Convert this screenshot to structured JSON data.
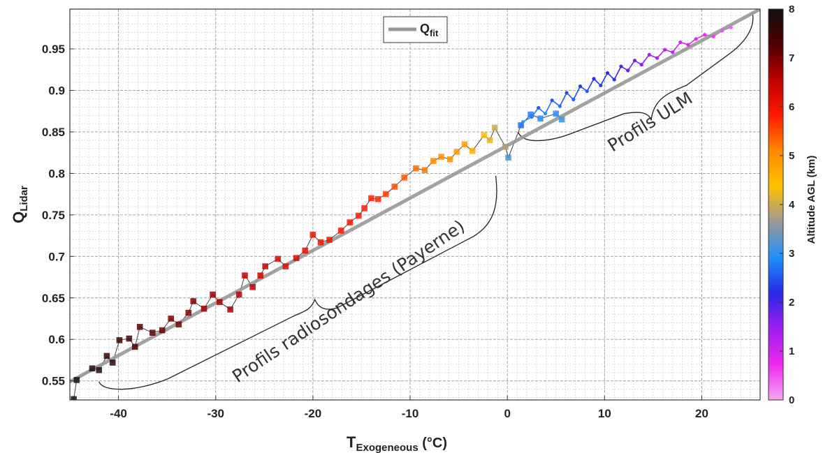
{
  "chart_data": {
    "type": "scatter",
    "xlabel": "T",
    "xlabel_sub": "Exogeneous",
    "xlabel_unit": " (°C)",
    "ylabel": "Q",
    "ylabel_sub": "Lidar",
    "xlim": [
      -45,
      26
    ],
    "ylim": [
      0.527,
      0.998
    ],
    "x_ticks": [
      -40,
      -30,
      -20,
      -10,
      0,
      10,
      20
    ],
    "y_ticks": [
      0.55,
      0.6,
      0.65,
      0.7,
      0.75,
      0.8,
      0.85,
      0.9,
      0.95
    ],
    "grid": true,
    "minor_grid": true,
    "legend": {
      "position": "top-left",
      "label": "Q",
      "label_sub": "fit",
      "color": "#999999"
    },
    "colorbar": {
      "label": "Altitude AGL (km)",
      "range": [
        0,
        8
      ],
      "ticks": [
        0,
        1,
        2,
        3,
        4,
        5,
        6,
        7,
        8
      ],
      "colors": [
        "#f2a7f2",
        "#f028f0",
        "#a01ef0",
        "#2828e6",
        "#1e90ff",
        "#999999",
        "#ffc000",
        "#ff8a00",
        "#ff1a00",
        "#c00000",
        "#500000",
        "#111111"
      ]
    },
    "fit_line": {
      "name": "Q",
      "points": [
        [
          -45,
          0.549
        ],
        [
          26,
          0.998
        ]
      ]
    },
    "series": [
      {
        "kind": "radiosonde",
        "points": [
          [
            -44.6,
            0.528,
            7.9
          ],
          [
            -44.3,
            0.551,
            7.9
          ],
          [
            -42.7,
            0.565,
            7.8
          ],
          [
            -42.0,
            0.563,
            7.7
          ],
          [
            -41.2,
            0.58,
            7.6
          ],
          [
            -40.6,
            0.572,
            7.6
          ],
          [
            -39.9,
            0.599,
            7.5
          ],
          [
            -38.9,
            0.601,
            7.4
          ],
          [
            -38.3,
            0.591,
            7.3
          ],
          [
            -37.8,
            0.615,
            7.3
          ],
          [
            -36.5,
            0.608,
            7.2
          ],
          [
            -35.5,
            0.611,
            7.1
          ],
          [
            -34.6,
            0.625,
            7.0
          ],
          [
            -33.8,
            0.618,
            7.0
          ],
          [
            -32.8,
            0.632,
            6.9
          ],
          [
            -32.3,
            0.646,
            6.9
          ],
          [
            -31.2,
            0.637,
            6.8
          ],
          [
            -30.3,
            0.654,
            6.8
          ],
          [
            -29.6,
            0.645,
            6.7
          ],
          [
            -28.5,
            0.636,
            6.7
          ],
          [
            -27.6,
            0.654,
            6.6
          ],
          [
            -27.0,
            0.677,
            6.5
          ],
          [
            -26.2,
            0.663,
            6.5
          ],
          [
            -25.4,
            0.677,
            6.4
          ],
          [
            -24.9,
            0.688,
            6.4
          ],
          [
            -23.6,
            0.697,
            6.3
          ],
          [
            -22.8,
            0.688,
            6.2
          ],
          [
            -21.7,
            0.698,
            6.2
          ],
          [
            -20.8,
            0.707,
            6.1
          ],
          [
            -20.0,
            0.726,
            6.0
          ],
          [
            -19.2,
            0.717,
            6.0
          ],
          [
            -18.3,
            0.72,
            6.0
          ],
          [
            -17.1,
            0.731,
            5.9
          ],
          [
            -16.2,
            0.741,
            5.9
          ],
          [
            -15.3,
            0.749,
            5.8
          ],
          [
            -14.7,
            0.758,
            5.8
          ],
          [
            -14.0,
            0.77,
            5.8
          ],
          [
            -13.3,
            0.769,
            5.7
          ],
          [
            -12.5,
            0.775,
            5.6
          ],
          [
            -11.6,
            0.784,
            5.5
          ],
          [
            -10.6,
            0.795,
            5.4
          ],
          [
            -9.4,
            0.806,
            5.3
          ],
          [
            -8.5,
            0.804,
            5.2
          ],
          [
            -7.6,
            0.815,
            5.1
          ],
          [
            -6.8,
            0.82,
            5.0
          ],
          [
            -5.9,
            0.817,
            5.0
          ],
          [
            -5.2,
            0.826,
            4.9
          ],
          [
            -4.4,
            0.835,
            4.8
          ],
          [
            -3.6,
            0.827,
            4.6
          ],
          [
            -2.4,
            0.846,
            4.4
          ],
          [
            -1.8,
            0.84,
            4.2
          ],
          [
            -1.3,
            0.855,
            4.0
          ],
          [
            -0.2,
            0.832,
            3.8
          ],
          [
            0.1,
            0.819,
            3.2
          ],
          [
            1.4,
            0.858,
            2.7
          ],
          [
            2.4,
            0.871,
            2.8
          ],
          [
            3.4,
            0.866,
            2.9
          ],
          [
            5.0,
            0.872,
            3.0
          ],
          [
            5.6,
            0.865,
            3.1
          ]
        ]
      },
      {
        "kind": "ulm",
        "points": [
          [
            1.6,
            0.862,
            3.0
          ],
          [
            2.5,
            0.868,
            2.8
          ],
          [
            3.2,
            0.879,
            2.6
          ],
          [
            3.9,
            0.872,
            2.9
          ],
          [
            4.6,
            0.888,
            2.5
          ],
          [
            5.4,
            0.881,
            2.7
          ],
          [
            6.1,
            0.897,
            2.4
          ],
          [
            6.8,
            0.889,
            2.6
          ],
          [
            7.5,
            0.905,
            2.3
          ],
          [
            8.2,
            0.899,
            2.5
          ],
          [
            8.9,
            0.914,
            2.2
          ],
          [
            9.6,
            0.906,
            2.4
          ],
          [
            10.3,
            0.921,
            2.1
          ],
          [
            11.0,
            0.913,
            2.3
          ],
          [
            11.7,
            0.929,
            2.0
          ],
          [
            12.4,
            0.924,
            1.8
          ],
          [
            13.1,
            0.936,
            1.7
          ],
          [
            13.8,
            0.931,
            1.6
          ],
          [
            14.6,
            0.943,
            1.4
          ],
          [
            15.4,
            0.939,
            1.3
          ],
          [
            16.2,
            0.949,
            1.2
          ],
          [
            17.0,
            0.946,
            1.1
          ],
          [
            17.8,
            0.958,
            1.0
          ],
          [
            18.6,
            0.955,
            0.9
          ],
          [
            19.4,
            0.962,
            0.8
          ],
          [
            20.3,
            0.967,
            0.7
          ],
          [
            21.2,
            0.965,
            0.6
          ],
          [
            22.1,
            0.972,
            0.5
          ],
          [
            23.0,
            0.976,
            0.4
          ]
        ]
      }
    ],
    "annotations": [
      {
        "text": "Profils radiosondages (Payerne)",
        "x": -16,
        "y": 0.64,
        "angle": -34
      },
      {
        "text": "Profils ULM",
        "x": 15,
        "y": 0.856,
        "angle": -32
      }
    ]
  }
}
